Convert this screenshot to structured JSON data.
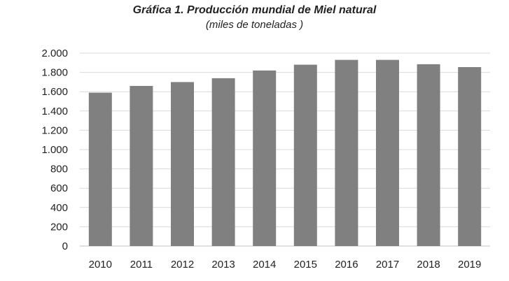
{
  "chart_data": {
    "type": "bar",
    "title": "Gráfica 1. Producción mundial de Miel natural",
    "subtitle": "(miles de toneladas )",
    "categories": [
      "2010",
      "2011",
      "2012",
      "2013",
      "2014",
      "2015",
      "2016",
      "2017",
      "2018",
      "2019"
    ],
    "values": [
      1590,
      1660,
      1700,
      1740,
      1820,
      1880,
      1930,
      1930,
      1885,
      1855
    ],
    "ylim": [
      0,
      2000
    ],
    "yticks": [
      0,
      200,
      400,
      600,
      800,
      1000,
      1200,
      1400,
      1600,
      1800,
      2000
    ],
    "ytick_labels": [
      "0",
      "200",
      "400",
      "600",
      "800",
      "1.000",
      "1.200",
      "1.400",
      "1.600",
      "1.800",
      "2.000"
    ],
    "xlabel": "",
    "ylabel": "",
    "grid": true,
    "bar_color": "#808080",
    "grid_color": "#d9d9d9"
  }
}
